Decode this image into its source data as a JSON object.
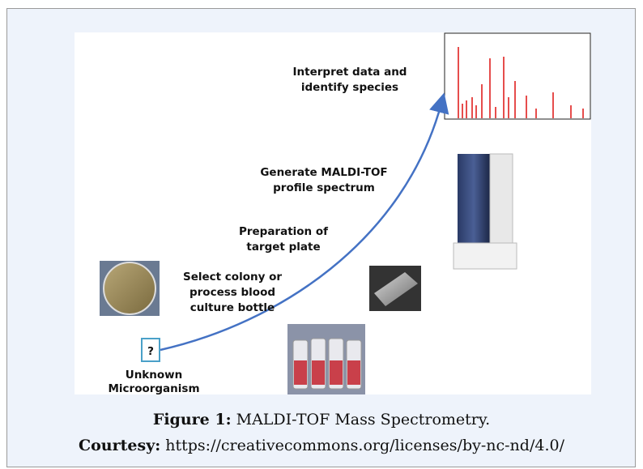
{
  "figure": {
    "labels": [
      {
        "lines": [
          "Interpret data and",
          "identify species"
        ]
      },
      {
        "lines": [
          "Generate MALDI-TOF",
          "profile spectrum"
        ]
      },
      {
        "lines": [
          "Preparation of",
          "target plate"
        ]
      },
      {
        "lines": [
          "Select colony or",
          "process blood",
          "culture bottle"
        ]
      },
      {
        "lines": [
          "Unknown",
          "Microorganism"
        ]
      }
    ],
    "question_mark": "?"
  },
  "caption": {
    "label": "Figure 1:",
    "text": "MALDI-TOF Mass Spectrometry."
  },
  "courtesy": {
    "label": "Courtesy:",
    "url": "https://creativecommons.org/licenses/by-nc-nd/4.0/"
  }
}
